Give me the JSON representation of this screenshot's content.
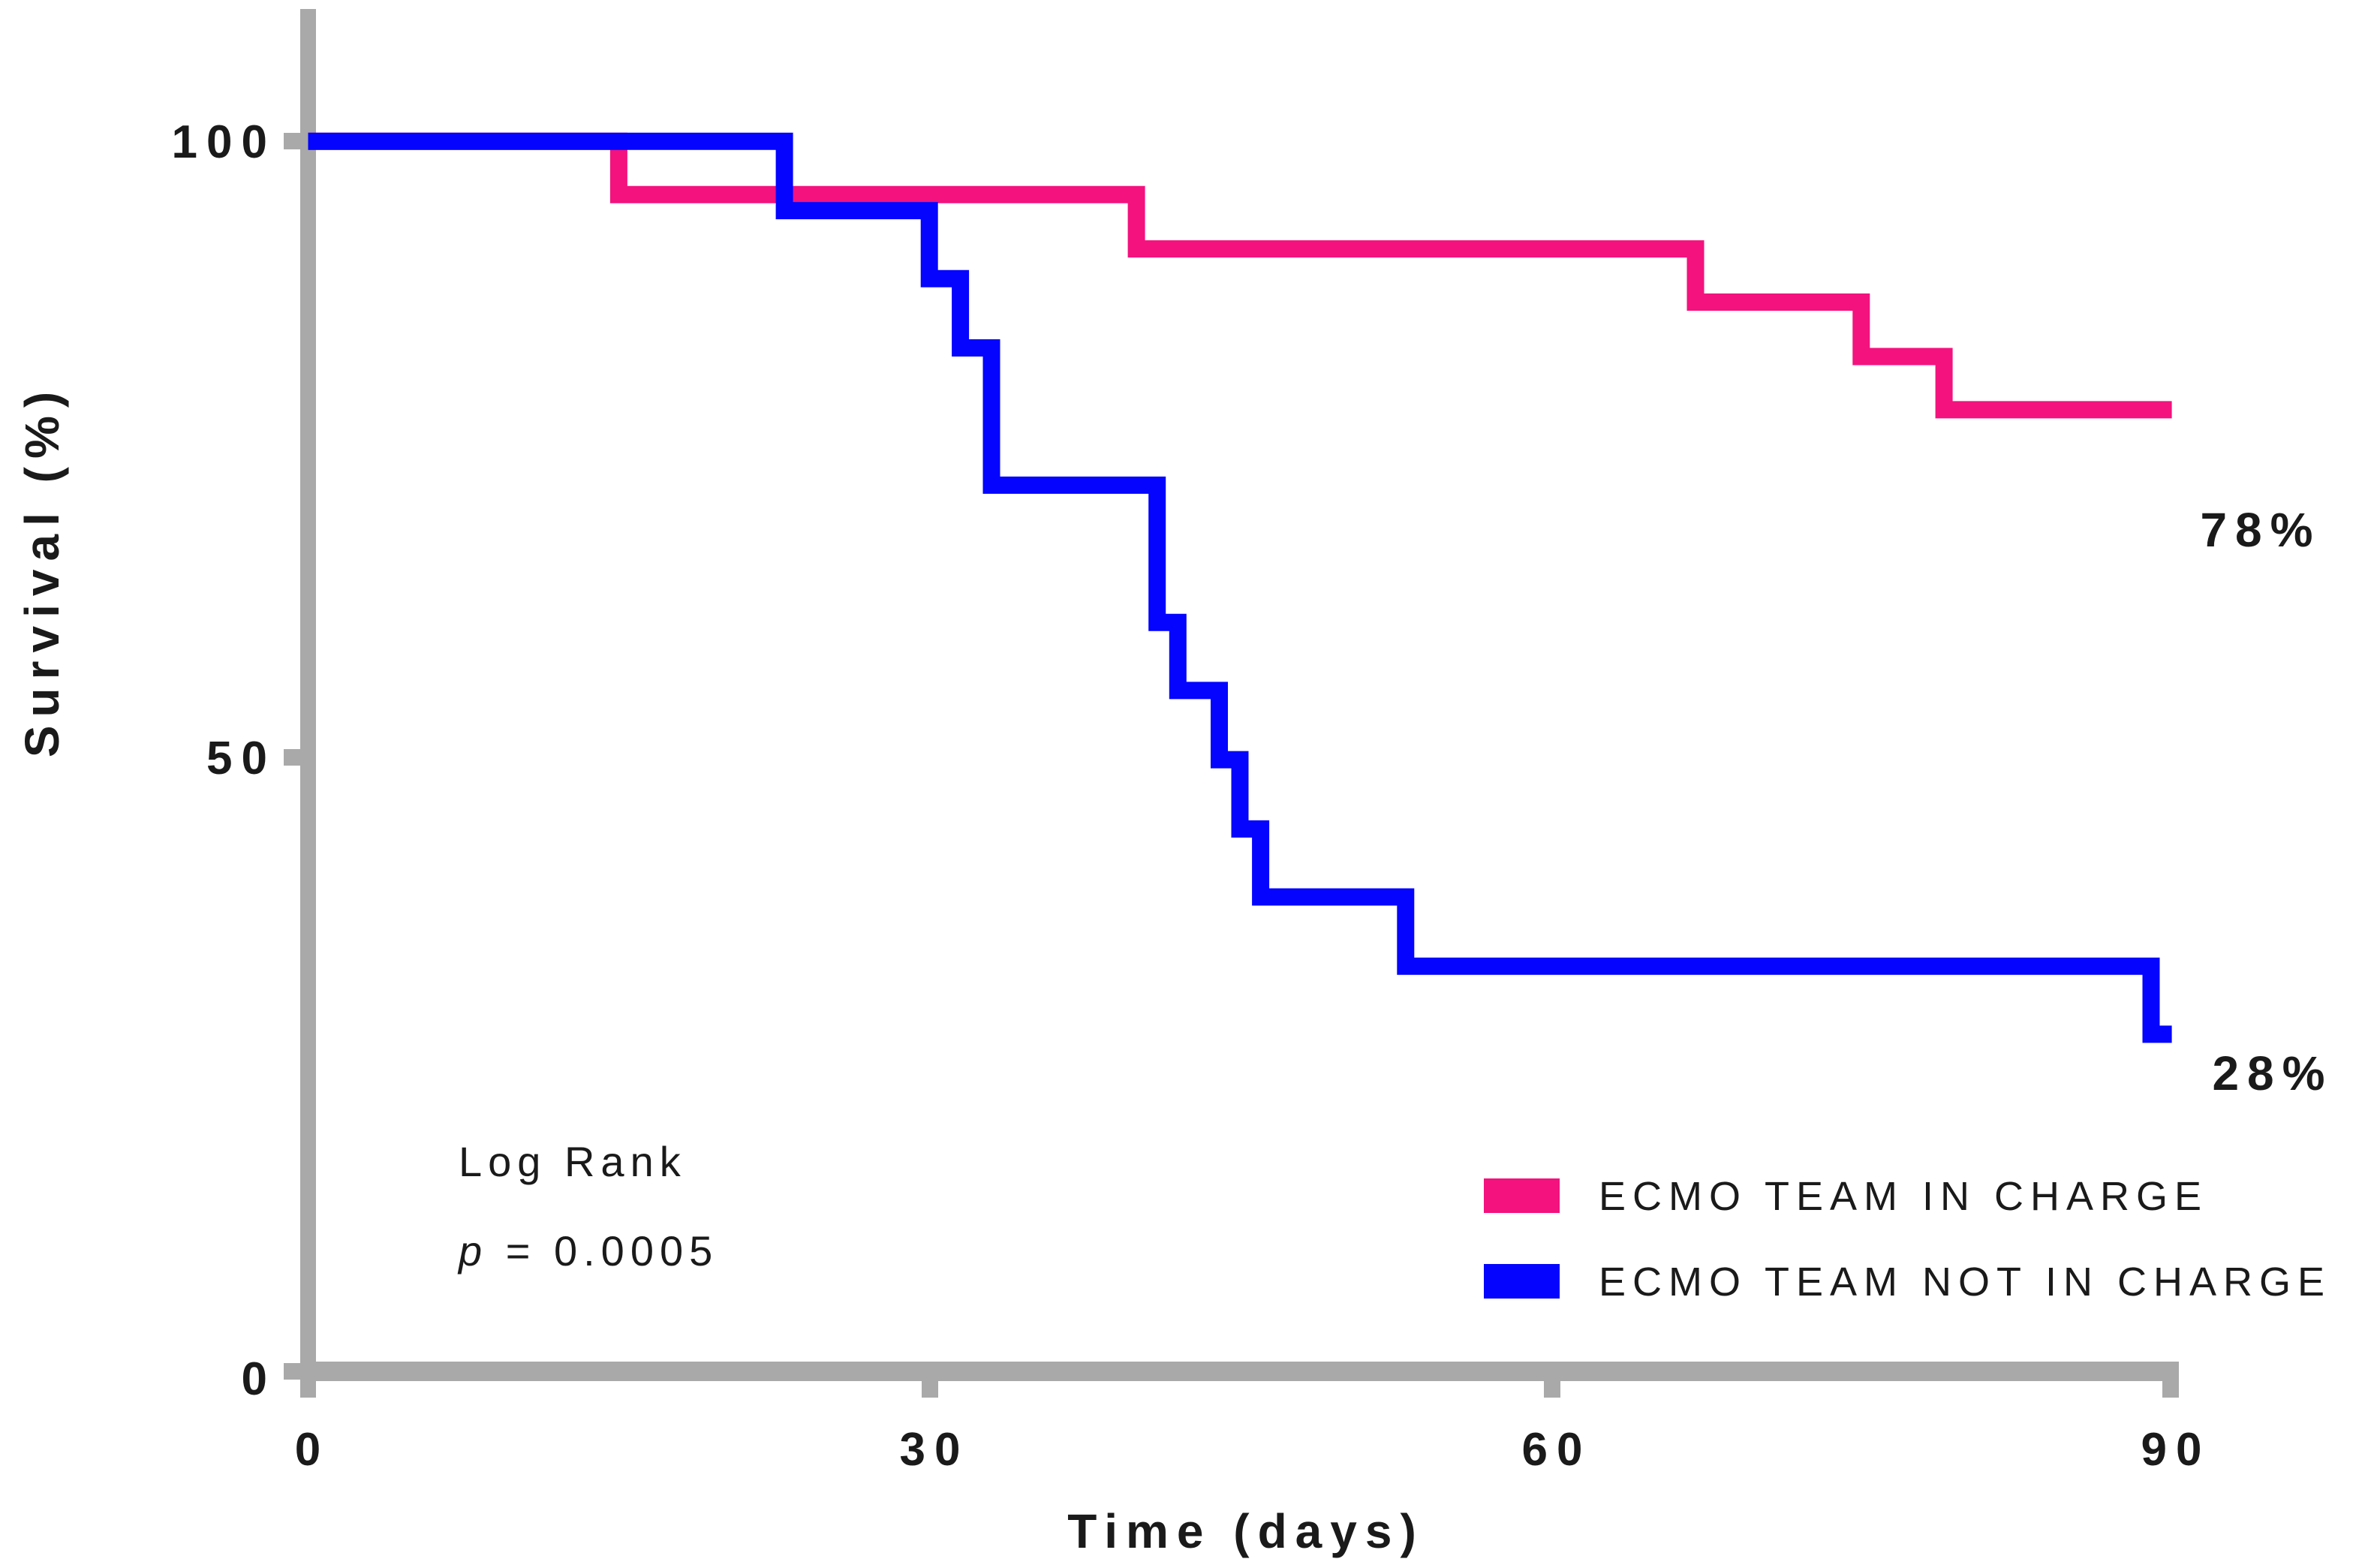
{
  "chart_data": {
    "type": "line",
    "subtype": "kaplan_meier_step_survival",
    "title": "",
    "xlabel": "Time (days)",
    "ylabel": "Survival (%)",
    "xlim": [
      0,
      90
    ],
    "ylim": [
      0,
      100
    ],
    "xticks": [
      0,
      30,
      60,
      90
    ],
    "yticks": [
      100,
      50,
      0
    ],
    "grid": false,
    "legend_position": "lower right",
    "series": [
      {
        "name": "ECMO TEAM IN CHARGE",
        "color": "#F3127E",
        "end_label": "78%",
        "points_day_pct": [
          [
            0,
            100
          ],
          [
            15,
            100
          ],
          [
            15,
            95.7
          ],
          [
            40,
            95.7
          ],
          [
            40,
            91.3
          ],
          [
            67,
            91.3
          ],
          [
            67,
            87.0
          ],
          [
            75,
            87.0
          ],
          [
            75,
            82.6
          ],
          [
            79,
            82.6
          ],
          [
            79,
            78.3
          ],
          [
            90,
            78.3
          ]
        ]
      },
      {
        "name": "ECMO TEAM NOT IN CHARGE",
        "color": "#0404FF",
        "end_label": "28%",
        "points_day_pct": [
          [
            0,
            100
          ],
          [
            23,
            100
          ],
          [
            23,
            94.4
          ],
          [
            30,
            94.4
          ],
          [
            30,
            88.9
          ],
          [
            31.5,
            88.9
          ],
          [
            31.5,
            83.3
          ],
          [
            33,
            83.3
          ],
          [
            33,
            72.2
          ],
          [
            41,
            72.2
          ],
          [
            41,
            61.1
          ],
          [
            42,
            61.1
          ],
          [
            42,
            55.6
          ],
          [
            44,
            55.6
          ],
          [
            44,
            50.0
          ],
          [
            45,
            50.0
          ],
          [
            45,
            44.4
          ],
          [
            46,
            44.4
          ],
          [
            46,
            38.9
          ],
          [
            53,
            38.9
          ],
          [
            53,
            33.3
          ],
          [
            89,
            33.3
          ],
          [
            89,
            27.8
          ],
          [
            90,
            27.8
          ]
        ]
      }
    ]
  },
  "axis": {
    "x_label": "Time (days)",
    "y_label": "Survival (%)",
    "x_tick_labels": [
      "0",
      "30",
      "60",
      "90"
    ],
    "y_tick_labels": [
      "100",
      "50",
      "0"
    ]
  },
  "stats": {
    "line1": "Log Rank",
    "p_symbol": "p",
    "p_rest": " = 0.0005"
  },
  "legend": {
    "items": [
      {
        "label": "ECMO TEAM IN CHARGE",
        "color": "#F3127E"
      },
      {
        "label": "ECMO TEAM NOT IN CHARGE",
        "color": "#0404FF"
      }
    ]
  },
  "colors": {
    "pink": "#F3127E",
    "blue": "#0404FF",
    "axis_gray": "#A9A9A9",
    "text": "#1A1A1A",
    "background": "#FFFFFF"
  }
}
